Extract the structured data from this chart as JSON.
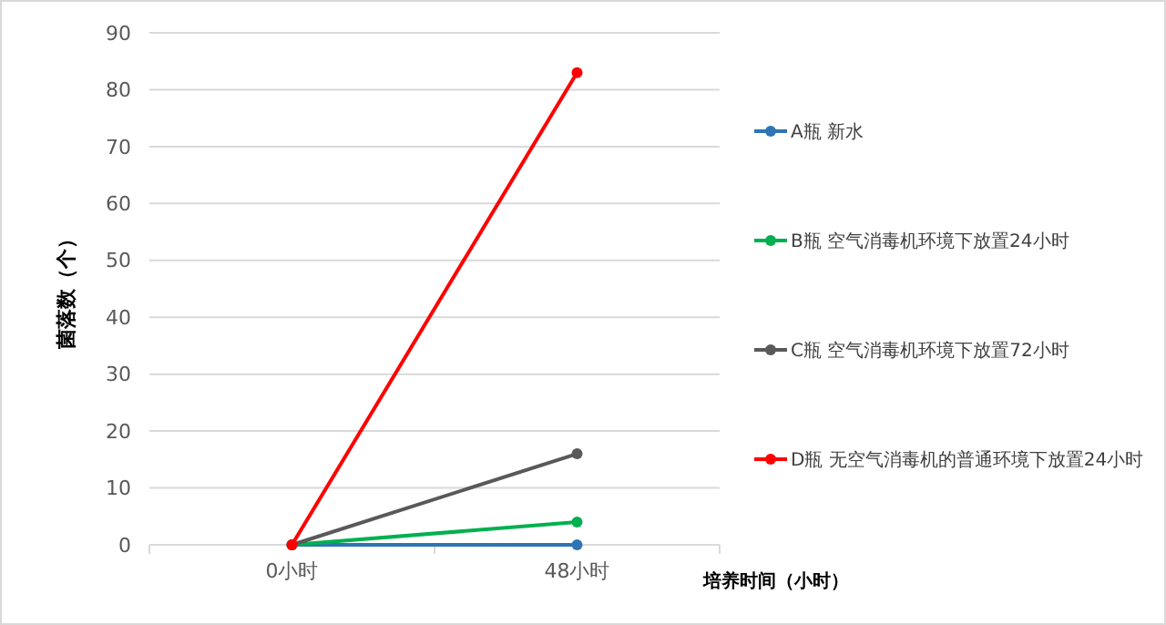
{
  "chart_data": {
    "type": "line",
    "xlabel": "培养时间（小时）",
    "ylabel": "菌落数（个）",
    "categories": [
      "0小时",
      "48小时"
    ],
    "ylim": [
      0,
      90
    ],
    "yticks": [
      0,
      10,
      20,
      30,
      40,
      50,
      60,
      70,
      80,
      90
    ],
    "grid": "y",
    "legend": "right",
    "marker": "circle",
    "line_style": "solid",
    "series": [
      {
        "name": "A瓶 新水",
        "color": "#2e75b6",
        "values": [
          0,
          0
        ]
      },
      {
        "name": "B瓶 空气消毒机环境下放置24小时",
        "color": "#00b050",
        "values": [
          0,
          4
        ]
      },
      {
        "name": "C瓶 空气消毒机环境下放置72小时",
        "color": "#595959",
        "values": [
          0,
          16
        ]
      },
      {
        "name": "D瓶 无空气消毒机的普通环境下放置24小时",
        "color": "#ff0000",
        "values": [
          0,
          83
        ]
      }
    ]
  }
}
